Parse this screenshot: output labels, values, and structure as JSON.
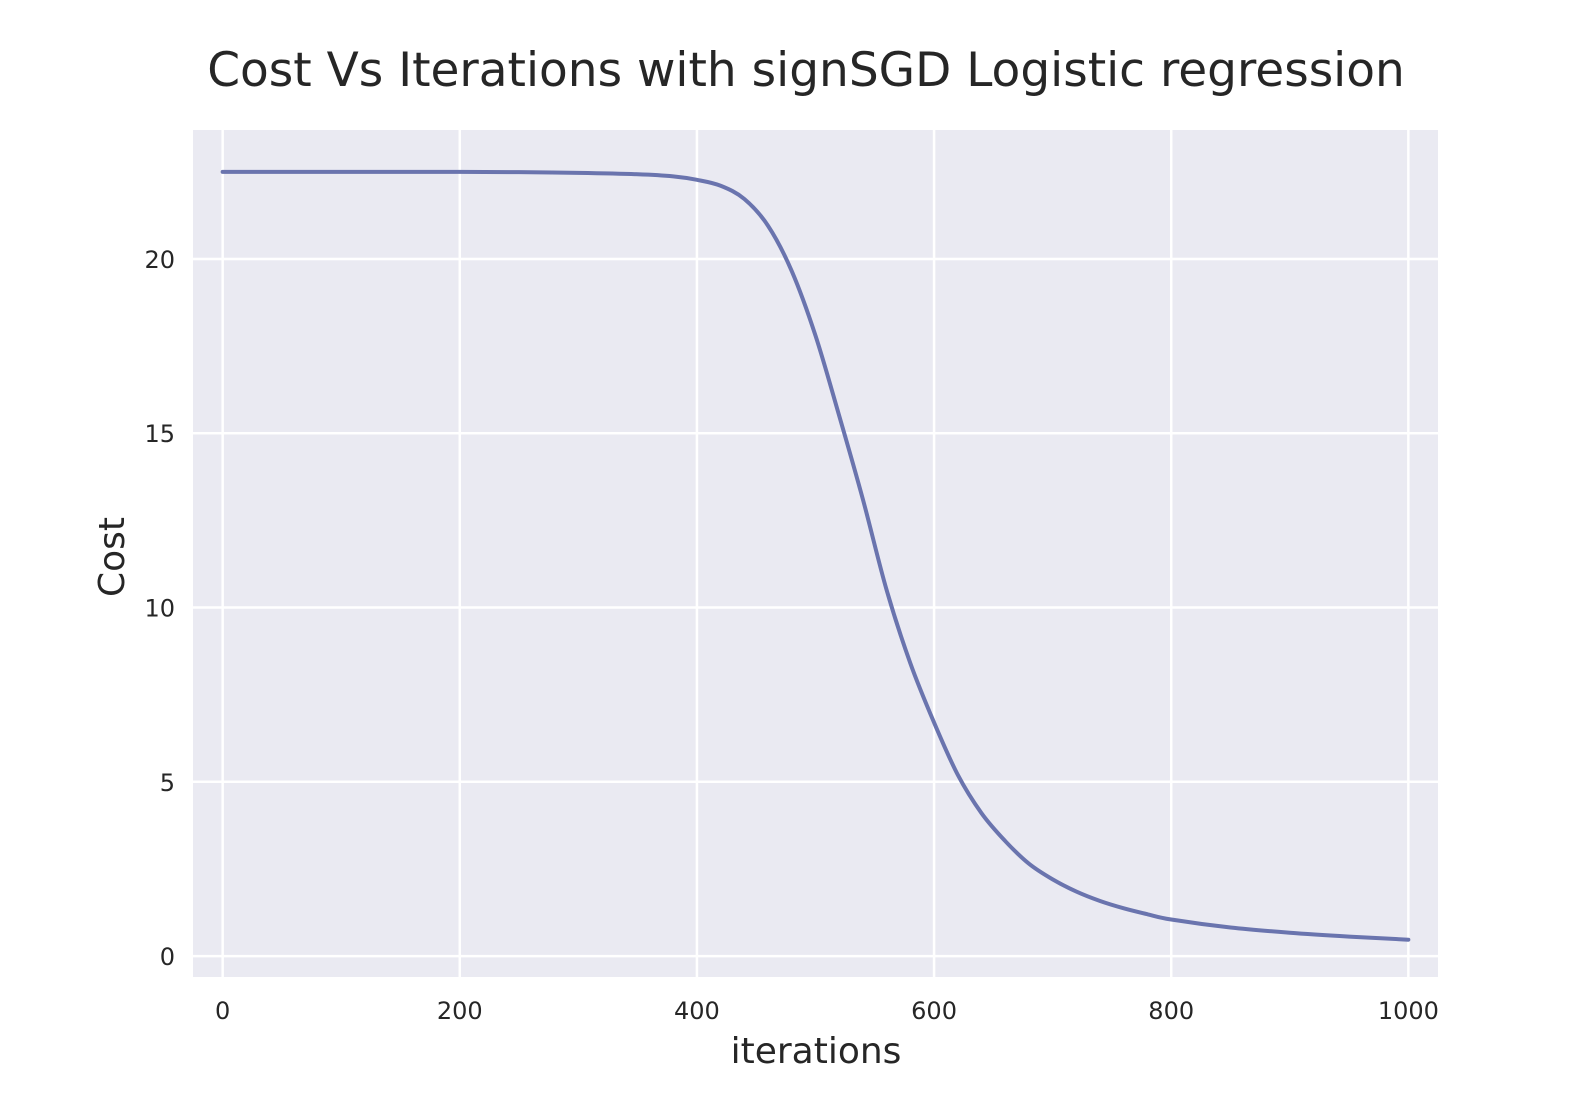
{
  "chart_data": {
    "type": "line",
    "title": "Cost Vs Iterations with signSGD Logistic regression",
    "xlabel": "iterations",
    "ylabel": "Cost",
    "xlim": [
      -25,
      1025
    ],
    "ylim": [
      -0.6,
      23.7
    ],
    "xticks": [
      0,
      200,
      400,
      600,
      800,
      1000
    ],
    "xtick_labels": [
      "0",
      "200",
      "400",
      "600",
      "800",
      "1000"
    ],
    "yticks": [
      0,
      5,
      10,
      15,
      20
    ],
    "ytick_labels": [
      "0",
      "5",
      "10",
      "15",
      "20"
    ],
    "grid": true,
    "legend": "none",
    "colors": {
      "background": "#eaeaf2",
      "grid": "#ffffff",
      "line": "#6a74ae"
    },
    "series": [
      {
        "color": "#6a74ae",
        "x": [
          0,
          50,
          100,
          150,
          200,
          250,
          300,
          350,
          380,
          400,
          420,
          440,
          460,
          480,
          500,
          520,
          540,
          560,
          580,
          600,
          620,
          640,
          660,
          680,
          700,
          720,
          740,
          760,
          780,
          800,
          850,
          900,
          950,
          1000
        ],
        "y": [
          22.5,
          22.5,
          22.5,
          22.5,
          22.5,
          22.49,
          22.47,
          22.43,
          22.37,
          22.27,
          22.1,
          21.72,
          20.95,
          19.65,
          17.8,
          15.5,
          13.1,
          10.5,
          8.4,
          6.7,
          5.2,
          4.1,
          3.3,
          2.65,
          2.2,
          1.85,
          1.58,
          1.37,
          1.2,
          1.05,
          0.82,
          0.67,
          0.56,
          0.47
        ]
      }
    ]
  }
}
